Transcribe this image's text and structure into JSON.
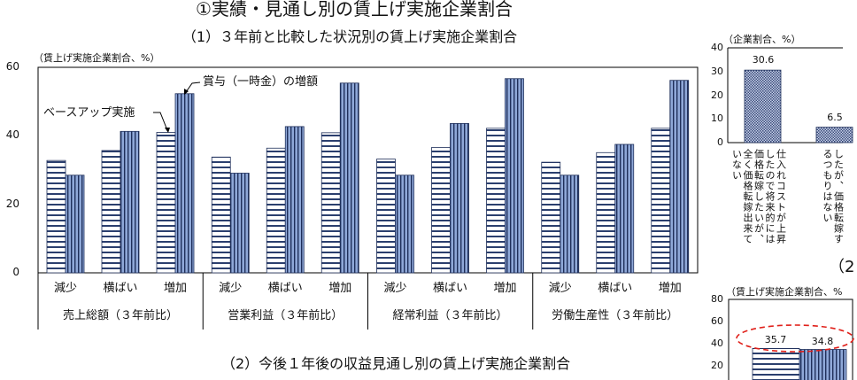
{
  "page_title": "①実績・見通し別の賃上げ実施企業割合",
  "chart_data": [
    {
      "type": "bar",
      "title": "（1）３年前と比較した状況別の賃上げ実施企業割合",
      "ylabel": "（賃上げ実施企業割合、%）",
      "ylim": [
        0,
        60
      ],
      "yticks": [
        "0",
        "20",
        "40",
        "60"
      ],
      "grid": false,
      "groups": [
        {
          "name": "売上総額（３年前比）",
          "categories": [
            "減少",
            "横ばい",
            "増加"
          ]
        },
        {
          "name": "営業利益（３年前比）",
          "categories": [
            "減少",
            "横ばい",
            "増加"
          ]
        },
        {
          "name": "経常利益（３年前比）",
          "categories": [
            "減少",
            "横ばい",
            "増加"
          ]
        },
        {
          "name": "労働生産性（３年前比）",
          "categories": [
            "減少",
            "横ばい",
            "増加"
          ]
        }
      ],
      "series": [
        {
          "name": "ベースアップ実施",
          "pattern": "horizontal-stripes",
          "values": [
            32.8,
            35.7,
            41.0,
            33.8,
            36.4,
            40.9,
            33.2,
            36.6,
            42.2,
            32.3,
            35.1,
            42.2
          ]
        },
        {
          "name": "賞与（一時金）の増額",
          "pattern": "vertical-stripes",
          "values": [
            28.5,
            41.3,
            52.3,
            29.1,
            42.7,
            55.4,
            28.5,
            43.6,
            56.7,
            28.5,
            37.5,
            56.2
          ]
        }
      ],
      "legend": "arrow-annotations"
    },
    {
      "type": "bar",
      "ylabel": "（企業割合、%）",
      "ylim": [
        0,
        40
      ],
      "yticks": [
        "0",
        "10",
        "20",
        "30",
        "40"
      ],
      "categories": [
        [
          "仕入れコストが上昇",
          "したので将来的には",
          "価格転嫁したいが、",
          "全く価格転嫁出来て",
          "いない"
        ],
        [
          "したが、価格転嫁す",
          "るつもりはない"
        ]
      ],
      "values": [
        30.6,
        6.5
      ],
      "data_labels": [
        "30.6",
        "6.5"
      ],
      "pattern": "crosshatch"
    },
    {
      "type": "bar",
      "title": "（2",
      "ylabel": "（賃上げ実施企業割合、%",
      "ylim": [
        0,
        80
      ],
      "yticks": [
        "20",
        "40",
        "60",
        "80"
      ],
      "values": [
        35.7,
        34.8
      ],
      "data_labels": [
        "35.7",
        "34.8"
      ],
      "patterns": [
        "horizontal-stripes",
        "vertical-stripes"
      ],
      "highlight": "red-dashed-ellipse"
    }
  ],
  "bottom_title": "（2）今後１年後の収益見通し別の賃上げ実施企業割合",
  "colors": {
    "bar_stripe": "#2b3f6e",
    "bar_fill_blue": "#8fa8d8",
    "highlight": "#e0201a"
  }
}
